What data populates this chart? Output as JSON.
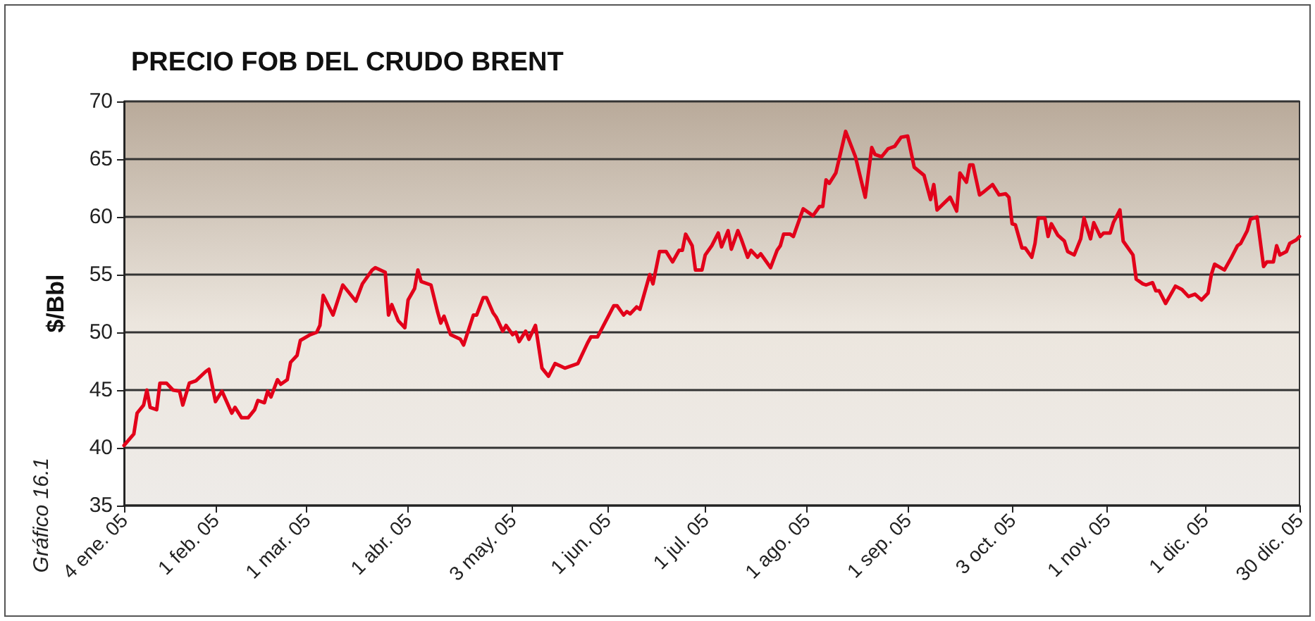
{
  "chart_data": {
    "type": "line",
    "title": "PRECIO FOB DEL CRUDO BRENT",
    "ylabel": "$/Bbl",
    "annotations": [
      "Gráfico 16.1"
    ],
    "x": [
      "2005-01-04",
      "2005-01-07",
      "2005-01-08",
      "2005-01-10",
      "2005-01-11",
      "2005-01-12",
      "2005-01-14",
      "2005-01-15",
      "2005-01-17",
      "2005-01-19",
      "2005-01-21",
      "2005-01-22",
      "2005-01-24",
      "2005-01-26",
      "2005-01-29",
      "2005-01-30",
      "2005-02-01",
      "2005-02-03",
      "2005-02-06",
      "2005-02-07",
      "2005-02-09",
      "2005-02-11",
      "2005-02-13",
      "2005-02-14",
      "2005-02-16",
      "2005-02-17",
      "2005-02-18",
      "2005-02-20",
      "2005-02-21",
      "2005-02-23",
      "2005-02-24",
      "2005-02-26",
      "2005-02-27",
      "2005-03-02",
      "2005-03-04",
      "2005-03-05",
      "2005-03-06",
      "2005-03-09",
      "2005-03-12",
      "2005-03-14",
      "2005-03-16",
      "2005-03-18",
      "2005-03-21",
      "2005-03-22",
      "2005-03-25",
      "2005-03-26",
      "2005-03-27",
      "2005-03-29",
      "2005-03-31",
      "2005-04-01",
      "2005-04-03",
      "2005-04-04",
      "2005-04-05",
      "2005-04-08",
      "2005-04-10",
      "2005-04-11",
      "2005-04-12",
      "2005-04-14",
      "2005-04-17",
      "2005-04-18",
      "2005-04-21",
      "2005-04-22",
      "2005-04-24",
      "2005-04-25",
      "2005-04-27",
      "2005-04-28",
      "2005-04-30",
      "2005-05-01",
      "2005-05-03",
      "2005-05-04",
      "2005-05-05",
      "2005-05-07",
      "2005-05-08",
      "2005-05-10",
      "2005-05-12",
      "2005-05-14",
      "2005-05-16",
      "2005-05-19",
      "2005-05-23",
      "2005-05-26",
      "2005-05-27",
      "2005-05-29",
      "2005-06-03",
      "2005-06-04",
      "2005-06-06",
      "2005-06-07",
      "2005-06-08",
      "2005-06-10",
      "2005-06-11",
      "2005-06-14",
      "2005-06-15",
      "2005-06-17",
      "2005-06-19",
      "2005-06-21",
      "2005-06-23",
      "2005-06-24",
      "2005-06-25",
      "2005-06-27",
      "2005-06-28",
      "2005-06-30",
      "2005-07-01",
      "2005-07-03",
      "2005-07-05",
      "2005-07-06",
      "2005-07-08",
      "2005-07-09",
      "2005-07-11",
      "2005-07-12",
      "2005-07-14",
      "2005-07-15",
      "2005-07-17",
      "2005-07-18",
      "2005-07-19",
      "2005-07-21",
      "2005-07-23",
      "2005-07-24",
      "2005-07-25",
      "2005-07-27",
      "2005-07-28",
      "2005-07-30",
      "2005-07-31",
      "2005-08-03",
      "2005-08-05",
      "2005-08-06",
      "2005-08-07",
      "2005-08-08",
      "2005-08-10",
      "2005-08-13",
      "2005-08-16",
      "2005-08-19",
      "2005-08-21",
      "2005-08-22",
      "2005-08-24",
      "2005-08-26",
      "2005-08-28",
      "2005-08-30",
      "2005-09-01",
      "2005-09-03",
      "2005-09-06",
      "2005-09-08",
      "2005-09-09",
      "2005-09-10",
      "2005-09-14",
      "2005-09-16",
      "2005-09-17",
      "2005-09-19",
      "2005-09-20",
      "2005-09-21",
      "2005-09-23",
      "2005-09-24",
      "2005-09-27",
      "2005-09-29",
      "2005-10-01",
      "2005-10-02",
      "2005-10-03",
      "2005-10-04",
      "2005-10-06",
      "2005-10-07",
      "2005-10-09",
      "2005-10-10",
      "2005-10-11",
      "2005-10-13",
      "2005-10-14",
      "2005-10-15",
      "2005-10-17",
      "2005-10-19",
      "2005-10-20",
      "2005-10-22",
      "2005-10-24",
      "2005-10-25",
      "2005-10-27",
      "2005-10-28",
      "2005-10-30",
      "2005-10-31",
      "2005-11-02",
      "2005-11-03",
      "2005-11-05",
      "2005-11-06",
      "2005-11-07",
      "2005-11-09",
      "2005-11-10",
      "2005-11-12",
      "2005-11-13",
      "2005-11-15",
      "2005-11-16",
      "2005-11-17",
      "2005-11-19",
      "2005-11-20",
      "2005-11-22",
      "2005-11-24",
      "2005-11-26",
      "2005-11-28",
      "2005-11-30",
      "2005-12-02",
      "2005-12-03",
      "2005-12-04",
      "2005-12-07",
      "2005-12-09",
      "2005-12-11",
      "2005-12-12",
      "2005-12-14",
      "2005-12-15",
      "2005-12-17",
      "2005-12-19",
      "2005-12-20",
      "2005-12-22",
      "2005-12-23",
      "2005-12-24",
      "2005-12-26",
      "2005-12-27",
      "2005-12-29",
      "2005-12-30"
    ],
    "series": [
      {
        "color": "#e2001a",
        "values": [
          40.2,
          41.2,
          43.0,
          43.7,
          45.0,
          43.5,
          43.3,
          45.6,
          45.6,
          45.0,
          44.9,
          43.7,
          45.6,
          45.8,
          46.6,
          46.8,
          44.0,
          44.9,
          43.0,
          43.5,
          42.6,
          42.6,
          43.3,
          44.1,
          43.9,
          44.9,
          44.4,
          45.9,
          45.5,
          45.9,
          47.4,
          48.0,
          49.3,
          49.8,
          50.0,
          50.6,
          53.2,
          51.5,
          54.1,
          53.4,
          52.7,
          54.2,
          55.4,
          55.6,
          55.2,
          51.5,
          52.4,
          51.0,
          50.4,
          52.8,
          53.8,
          55.4,
          54.4,
          54.1,
          51.8,
          50.8,
          51.4,
          49.8,
          49.4,
          48.9,
          51.5,
          51.5,
          53.0,
          53.0,
          51.7,
          51.3,
          50.1,
          50.6,
          49.8,
          50.0,
          49.2,
          50.1,
          49.4,
          50.6,
          46.9,
          46.2,
          47.3,
          46.9,
          47.3,
          49.1,
          49.6,
          49.6,
          52.3,
          52.3,
          51.5,
          51.8,
          51.6,
          52.2,
          52.0,
          55.0,
          54.2,
          57.0,
          57.0,
          56.1,
          57.1,
          57.1,
          58.5,
          57.5,
          55.4,
          55.4,
          56.7,
          57.5,
          58.6,
          57.4,
          58.8,
          57.2,
          58.8,
          58.1,
          56.5,
          57.1,
          56.5,
          56.8,
          56.4,
          55.6,
          57.1,
          57.5,
          58.5,
          58.5,
          58.3,
          59.9,
          60.7,
          60.1,
          60.9,
          60.9,
          63.2,
          62.9,
          63.8,
          67.4,
          65.2,
          61.7,
          66.0,
          65.4,
          65.2,
          65.9,
          66.1,
          66.9,
          67.0,
          64.3,
          63.6,
          61.5,
          62.8,
          60.6,
          61.7,
          60.5,
          63.8,
          63.0,
          64.5,
          64.5,
          61.9,
          62.1,
          62.8,
          61.9,
          62.0,
          61.7,
          59.4,
          59.3,
          57.3,
          57.3,
          56.5,
          57.7,
          59.9,
          59.9,
          58.3,
          59.4,
          58.4,
          57.9,
          57.0,
          56.7,
          58.1,
          59.9,
          58.1,
          59.5,
          58.3,
          58.6,
          58.6,
          59.5,
          60.6,
          57.9,
          57.5,
          56.7,
          54.6,
          54.2,
          54.1,
          54.3,
          53.6,
          53.6,
          52.5,
          53.0,
          54.0,
          53.7,
          53.1,
          53.3,
          52.8,
          53.4,
          55.0,
          55.9,
          55.4,
          56.4,
          57.5,
          57.7,
          58.8,
          59.8,
          60.0,
          55.7,
          56.1,
          56.1,
          57.5,
          56.7,
          57.0,
          57.7,
          58.0,
          58.3
        ]
      }
    ],
    "xlim": [
      "2005-01-04",
      "2005-12-30"
    ],
    "xticks": [
      {
        "value": "2005-01-04",
        "label": "4 ene. 05"
      },
      {
        "value": "2005-02-01",
        "label": "1 feb. 05"
      },
      {
        "value": "2005-03-01",
        "label": "1 mar. 05"
      },
      {
        "value": "2005-04-01",
        "label": "1 abr. 05"
      },
      {
        "value": "2005-05-03",
        "label": "3 may. 05"
      },
      {
        "value": "2005-06-01",
        "label": "1 jun. 05"
      },
      {
        "value": "2005-07-01",
        "label": "1 jul. 05"
      },
      {
        "value": "2005-08-01",
        "label": "1 ago. 05"
      },
      {
        "value": "2005-09-01",
        "label": "1 sep. 05"
      },
      {
        "value": "2005-10-03",
        "label": "3 oct. 05"
      },
      {
        "value": "2005-11-01",
        "label": "1 nov. 05"
      },
      {
        "value": "2005-12-01",
        "label": "1 dic. 05"
      },
      {
        "value": "2005-12-30",
        "label": "30 dic. 05"
      }
    ],
    "ylim": [
      35,
      70
    ],
    "yticks": [
      35,
      40,
      45,
      50,
      55,
      60,
      65,
      70
    ],
    "grid": "y",
    "marker": "none",
    "line_style": "solid"
  }
}
